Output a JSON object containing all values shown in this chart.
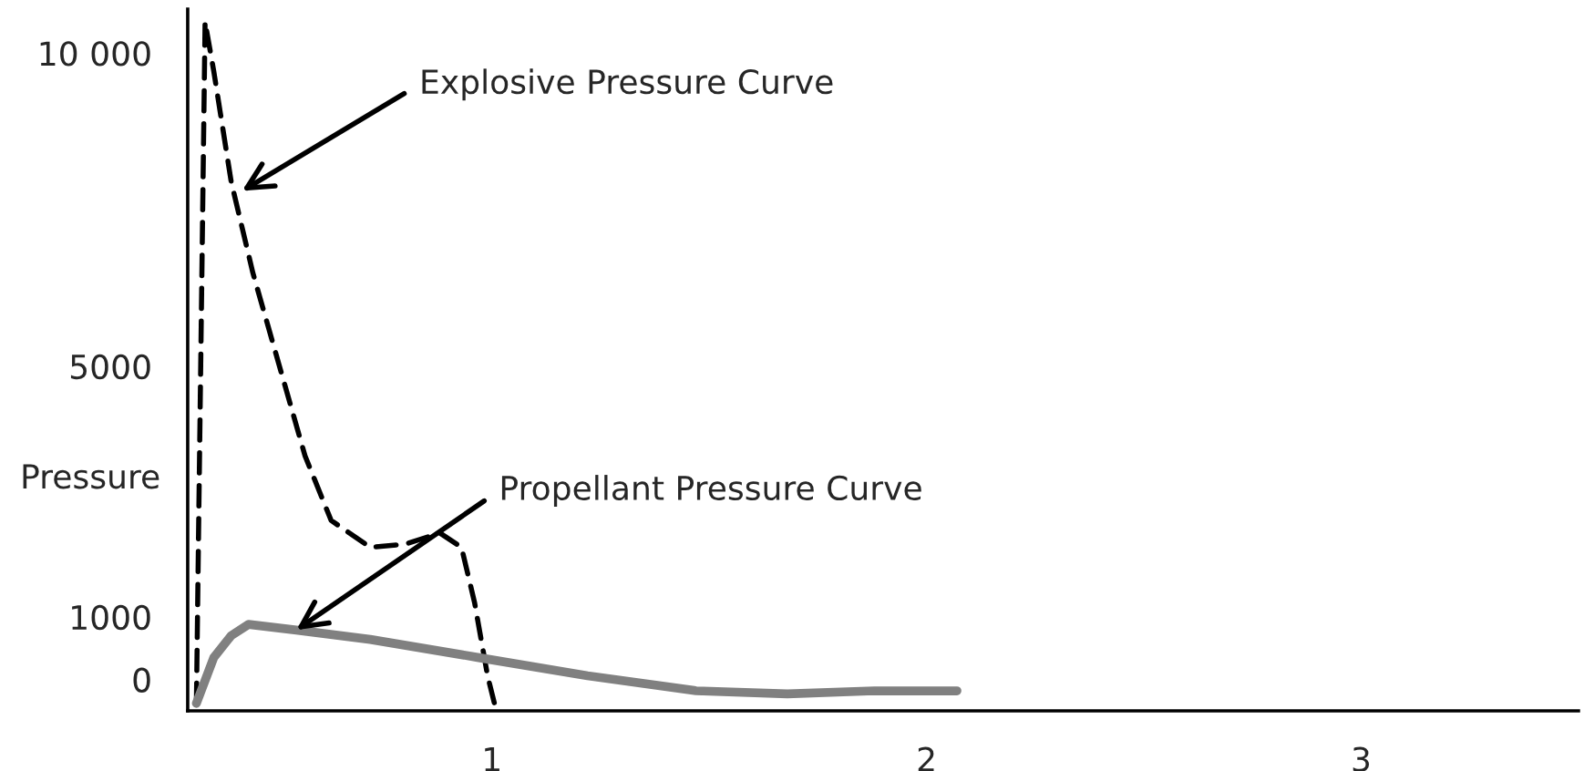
{
  "chart_data": {
    "type": "line",
    "ylabel": "Pressure",
    "xlim": [
      0.3,
      3.5
    ],
    "xticks": [
      1,
      2,
      3
    ],
    "ylim": [
      -500,
      10700
    ],
    "yticks": [
      0,
      1000,
      5000,
      {
        "value": 10000,
        "label": "10 000"
      }
    ],
    "grid": false,
    "legend": false,
    "marker": "none",
    "series": [
      {
        "color": "#000000",
        "line_style": "dashed",
        "x": [
          0.32,
          0.34,
          0.36,
          0.4,
          0.45,
          0.51,
          0.57,
          0.63,
          0.72,
          0.8,
          0.88,
          0.93,
          0.96,
          0.99,
          1.01
        ],
        "values": [
          -380,
          10500,
          9710,
          7950,
          6490,
          5030,
          3570,
          2540,
          2110,
          2160,
          2340,
          2110,
          1230,
          60,
          -500
        ]
      },
      {
        "color": "#808080",
        "line_style": "solid",
        "x": [
          0.32,
          0.36,
          0.4,
          0.44,
          0.55,
          0.72,
          0.97,
          1.22,
          1.47,
          1.68,
          1.88,
          2.07
        ],
        "values": [
          -380,
          350,
          700,
          880,
          790,
          640,
          350,
          60,
          -180,
          -230,
          -180,
          -180
        ]
      }
    ],
    "annotations": [
      {
        "text": "Explosive Pressure Curve",
        "x": 0.425,
        "y": 7800
      },
      {
        "text": "Propellant Pressure Curve",
        "x": 0.55,
        "y": 790
      }
    ]
  }
}
